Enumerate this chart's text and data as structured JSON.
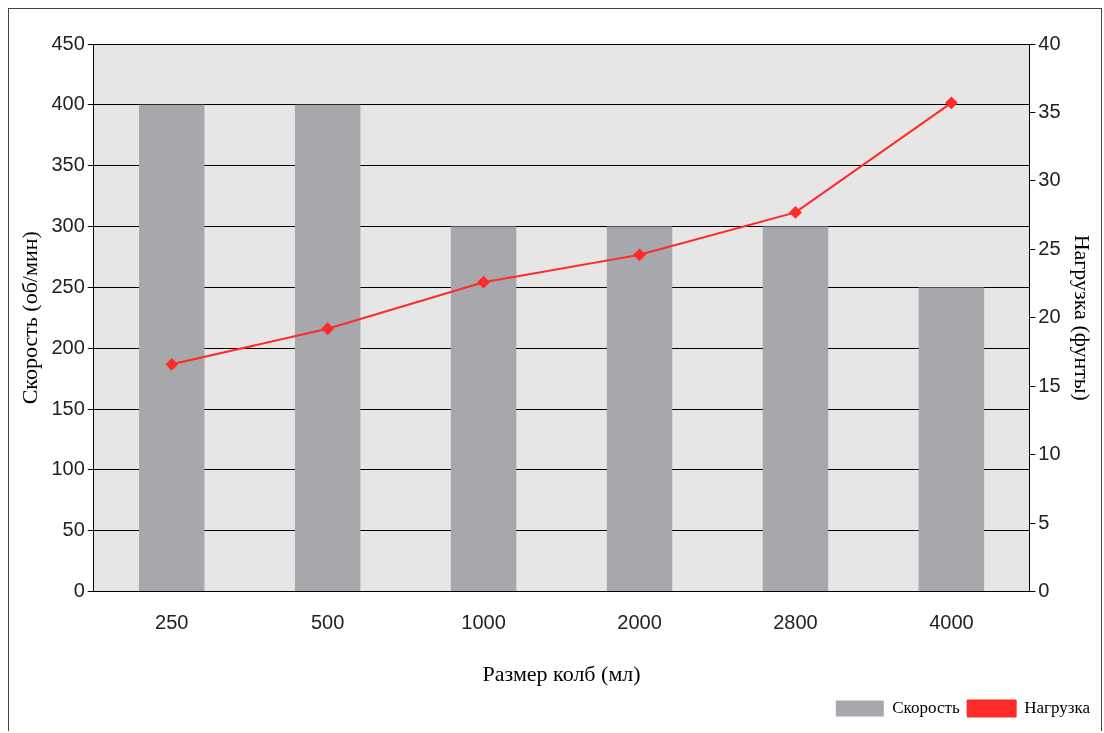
{
  "chart_data": {
    "type": "bar",
    "xlabel": "Размер колб (мл)",
    "ylabel": "Скорость (об/мин)",
    "y2label": "Нагрузка (фунты)",
    "categories": [
      "250",
      "500",
      "1000",
      "2000",
      "2800",
      "4000"
    ],
    "series": [
      {
        "name": "Скорость",
        "color": "#a7a8ab",
        "values": [
          400,
          400,
          300,
          300,
          300,
          250
        ]
      },
      {
        "name": "Нагрузка",
        "type": "line",
        "axis": "y2",
        "color": "#ff2a2a",
        "marker": "diamond",
        "values": [
          16.6,
          19.2,
          22.6,
          24.6,
          27.7,
          35.7
        ]
      }
    ],
    "ylim": [
      0,
      450
    ],
    "yticks": [
      0,
      50,
      100,
      150,
      200,
      250,
      300,
      350,
      400,
      450
    ],
    "y2lim": [
      0,
      40
    ],
    "y2ticks": [
      0,
      5,
      10,
      15,
      20,
      25,
      30,
      35,
      40
    ],
    "grid": "y",
    "legend": "bottom right"
  }
}
